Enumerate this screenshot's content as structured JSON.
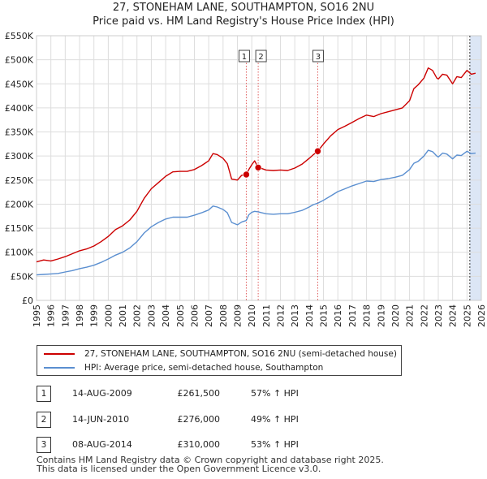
{
  "title_line1": "27, STONEHAM LANE, SOUTHAMPTON, SO16 2NU",
  "title_line2": "Price paid vs. HM Land Registry's House Price Index (HPI)",
  "colors": {
    "property": "#cc0000",
    "hpi": "#5b8fd0",
    "marker_line": "#e06060",
    "shade": "#dce6f5",
    "grid": "#dddddd"
  },
  "chart_data": {
    "type": "line",
    "ylim": [
      0,
      550000
    ],
    "xlim": [
      1995,
      2026
    ],
    "y_ticks": [
      {
        "value": 0,
        "label": "£0"
      },
      {
        "value": 50000,
        "label": "£50K"
      },
      {
        "value": 100000,
        "label": "£100K"
      },
      {
        "value": 150000,
        "label": "£150K"
      },
      {
        "value": 200000,
        "label": "£200K"
      },
      {
        "value": 250000,
        "label": "£250K"
      },
      {
        "value": 300000,
        "label": "£300K"
      },
      {
        "value": 350000,
        "label": "£350K"
      },
      {
        "value": 400000,
        "label": "£400K"
      },
      {
        "value": 450000,
        "label": "£450K"
      },
      {
        "value": 500000,
        "label": "£500K"
      },
      {
        "value": 550000,
        "label": "£550K"
      }
    ],
    "x_ticks": [
      "1995",
      "1996",
      "1997",
      "1998",
      "1999",
      "2000",
      "2001",
      "2002",
      "2003",
      "2004",
      "2005",
      "2006",
      "2007",
      "2008",
      "2009",
      "2010",
      "2011",
      "2012",
      "2013",
      "2014",
      "2015",
      "2016",
      "2017",
      "2018",
      "2019",
      "2020",
      "2021",
      "2022",
      "2023",
      "2024",
      "2025",
      "2026"
    ],
    "future_start": 2025.2,
    "series": [
      {
        "name": "27, STONEHAM LANE, SOUTHAMPTON, SO16 2NU (semi-detached house)",
        "x": [
          1995,
          1995.5,
          1996,
          1996.5,
          1997,
          1997.5,
          1998,
          1998.5,
          1999,
          1999.5,
          2000,
          2000.5,
          2001,
          2001.5,
          2002,
          2002.5,
          2003,
          2003.5,
          2004,
          2004.5,
          2005,
          2005.5,
          2006,
          2006.5,
          2007,
          2007.3,
          2007.6,
          2008,
          2008.3,
          2008.6,
          2009,
          2009.3,
          2009.62,
          2009.8,
          2010,
          2010.2,
          2010.45,
          2010.7,
          2011,
          2011.5,
          2012,
          2012.5,
          2013,
          2013.5,
          2014,
          2014.3,
          2014.6,
          2015,
          2015.5,
          2016,
          2016.5,
          2017,
          2017.5,
          2018,
          2018.5,
          2019,
          2019.5,
          2020,
          2020.5,
          2021,
          2021.3,
          2021.6,
          2022,
          2022.3,
          2022.6,
          2022.9,
          2023,
          2023.3,
          2023.6,
          2024,
          2024.3,
          2024.6,
          2025,
          2025.3,
          2025.6
        ],
        "values": [
          80000,
          84000,
          82000,
          86000,
          91000,
          97000,
          103000,
          107000,
          113000,
          122000,
          133000,
          147000,
          155000,
          167000,
          185000,
          212000,
          232000,
          245000,
          258000,
          267000,
          268000,
          268000,
          272000,
          280000,
          290000,
          305000,
          303000,
          295000,
          284000,
          252000,
          250000,
          260000,
          261500,
          272000,
          282000,
          290000,
          276000,
          274000,
          271000,
          270000,
          271000,
          270000,
          275000,
          283000,
          295000,
          303000,
          310000,
          325000,
          342000,
          355000,
          362000,
          370000,
          378000,
          385000,
          382000,
          388000,
          392000,
          396000,
          400000,
          415000,
          440000,
          448000,
          462000,
          483000,
          478000,
          462000,
          460000,
          470000,
          468000,
          450000,
          465000,
          463000,
          478000,
          470000,
          472000
        ]
      },
      {
        "name": "HPI: Average price, semi-detached house, Southampton",
        "x": [
          1995,
          1995.5,
          1996,
          1996.5,
          1997,
          1997.5,
          1998,
          1998.5,
          1999,
          1999.5,
          2000,
          2000.5,
          2001,
          2001.5,
          2002,
          2002.5,
          2003,
          2003.5,
          2004,
          2004.5,
          2005,
          2005.5,
          2006,
          2006.5,
          2007,
          2007.3,
          2007.6,
          2008,
          2008.3,
          2008.6,
          2009,
          2009.3,
          2009.62,
          2009.8,
          2010,
          2010.2,
          2010.45,
          2010.7,
          2011,
          2011.5,
          2012,
          2012.5,
          2013,
          2013.5,
          2014,
          2014.3,
          2014.6,
          2015,
          2015.5,
          2016,
          2016.5,
          2017,
          2017.5,
          2018,
          2018.5,
          2019,
          2019.5,
          2020,
          2020.5,
          2021,
          2021.3,
          2021.6,
          2022,
          2022.3,
          2022.6,
          2022.9,
          2023,
          2023.3,
          2023.6,
          2024,
          2024.3,
          2024.6,
          2025,
          2025.3,
          2025.6
        ],
        "values": [
          53000,
          54000,
          55000,
          56000,
          59000,
          62000,
          66000,
          69000,
          73000,
          79000,
          86000,
          94000,
          100000,
          109000,
          122000,
          140000,
          153000,
          162000,
          169000,
          173000,
          173000,
          173000,
          177000,
          182000,
          188000,
          196000,
          194000,
          189000,
          182000,
          162000,
          157000,
          163000,
          166000,
          178000,
          183000,
          185000,
          184000,
          182000,
          180000,
          179000,
          180000,
          180000,
          183000,
          187000,
          194000,
          199000,
          202000,
          208000,
          217000,
          226000,
          232000,
          238000,
          243000,
          248000,
          247000,
          251000,
          253000,
          256000,
          260000,
          272000,
          285000,
          289000,
          300000,
          312000,
          309000,
          300000,
          298000,
          306000,
          304000,
          294000,
          302000,
          301000,
          310000,
          305000,
          306000
        ]
      }
    ],
    "transactions": [
      {
        "num": "1",
        "x": 2009.62,
        "price": 261500
      },
      {
        "num": "2",
        "x": 2010.45,
        "price": 276000
      },
      {
        "num": "3",
        "x": 2014.6,
        "price": 310000
      }
    ]
  },
  "legend": {
    "property_label": "27, STONEHAM LANE, SOUTHAMPTON, SO16 2NU (semi-detached house)",
    "hpi_label": "HPI: Average price, semi-detached house, Southampton"
  },
  "table": [
    {
      "num": "1",
      "date": "14-AUG-2009",
      "price": "£261,500",
      "hpi": "57% ↑ HPI"
    },
    {
      "num": "2",
      "date": "14-JUN-2010",
      "price": "£276,000",
      "hpi": "49% ↑ HPI"
    },
    {
      "num": "3",
      "date": "08-AUG-2014",
      "price": "£310,000",
      "hpi": "53% ↑ HPI"
    }
  ],
  "footer_line1": "Contains HM Land Registry data © Crown copyright and database right 2025.",
  "footer_line2": "This data is licensed under the Open Government Licence v3.0."
}
